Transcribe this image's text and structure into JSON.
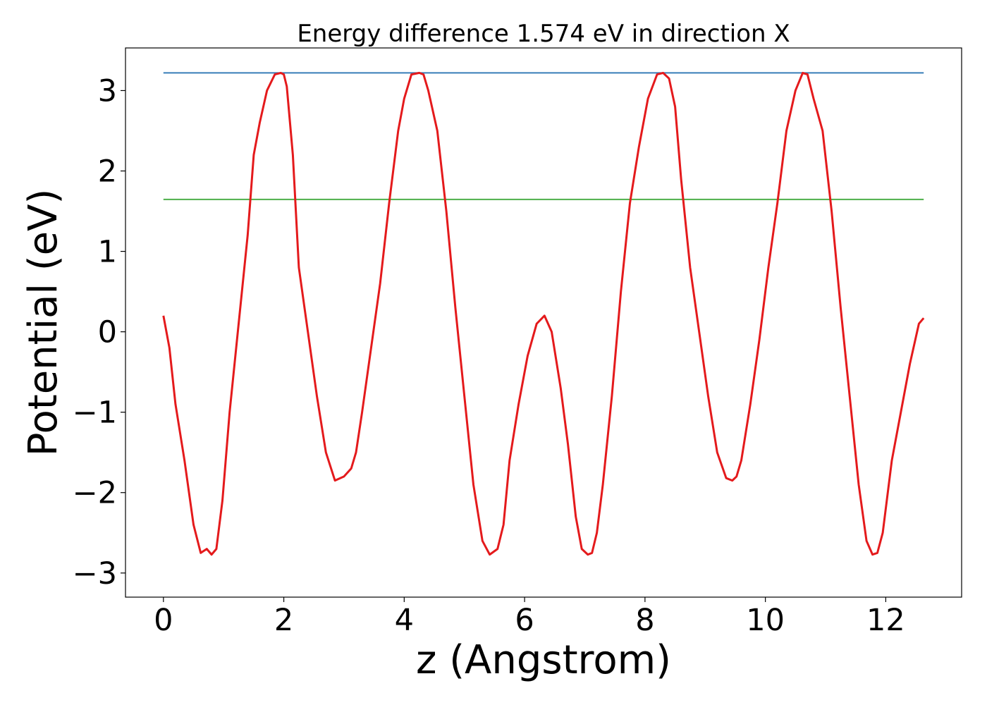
{
  "chart_data": {
    "type": "line",
    "title": "Energy difference 1.574 eV in direction X",
    "xlabel": "z (Angstrom)",
    "ylabel": "Potential (eV)",
    "xlim": [
      -0.63,
      13.26
    ],
    "ylim": [
      -3.3,
      3.53
    ],
    "xticks": [
      0,
      2,
      4,
      6,
      8,
      10,
      12
    ],
    "xtick_labels": [
      "0",
      "2",
      "4",
      "6",
      "8",
      "10",
      "12"
    ],
    "yticks": [
      -3,
      -2,
      -1,
      0,
      1,
      2,
      3
    ],
    "ytick_labels": [
      "−3",
      "−2",
      "−1",
      "0",
      "1",
      "2",
      "3"
    ],
    "grid": false,
    "series": [
      {
        "color": "#e41a1c",
        "x": [
          0.0,
          0.1,
          0.2,
          0.35,
          0.5,
          0.62,
          0.72,
          0.8,
          0.88,
          0.98,
          1.1,
          1.25,
          1.4,
          1.5,
          1.6,
          1.72,
          1.85,
          1.95,
          2.0,
          2.05,
          2.15,
          2.25,
          2.4,
          2.55,
          2.7,
          2.85,
          3.0,
          3.12,
          3.2,
          3.3,
          3.45,
          3.6,
          3.75,
          3.9,
          4.0,
          4.12,
          4.25,
          4.32,
          4.4,
          4.55,
          4.7,
          4.85,
          5.0,
          5.15,
          5.3,
          5.42,
          5.55,
          5.65,
          5.75,
          5.9,
          6.05,
          6.2,
          6.33,
          6.45,
          6.6,
          6.72,
          6.85,
          6.95,
          7.05,
          7.12,
          7.2,
          7.3,
          7.45,
          7.6,
          7.75,
          7.9,
          8.05,
          8.2,
          8.3,
          8.4,
          8.5,
          8.6,
          8.75,
          8.9,
          9.05,
          9.2,
          9.35,
          9.45,
          9.52,
          9.6,
          9.75,
          9.9,
          10.05,
          10.2,
          10.35,
          10.5,
          10.62,
          10.7,
          10.8,
          10.95,
          11.1,
          11.25,
          11.4,
          11.55,
          11.68,
          11.78,
          11.86,
          11.95,
          12.1,
          12.25,
          12.4,
          12.55,
          12.63
        ],
        "values": [
          0.2,
          -0.2,
          -0.9,
          -1.6,
          -2.4,
          -2.75,
          -2.7,
          -2.77,
          -2.7,
          -2.1,
          -1.0,
          0.1,
          1.2,
          2.2,
          2.6,
          3.0,
          3.2,
          3.22,
          3.2,
          3.05,
          2.2,
          0.8,
          0.0,
          -0.8,
          -1.5,
          -1.85,
          -1.8,
          -1.7,
          -1.5,
          -1.0,
          -0.2,
          0.6,
          1.6,
          2.5,
          2.9,
          3.2,
          3.22,
          3.2,
          3.0,
          2.5,
          1.5,
          0.3,
          -0.8,
          -1.9,
          -2.6,
          -2.77,
          -2.7,
          -2.4,
          -1.6,
          -0.9,
          -0.3,
          0.1,
          0.2,
          0.0,
          -0.7,
          -1.4,
          -2.3,
          -2.7,
          -2.77,
          -2.75,
          -2.5,
          -1.9,
          -0.8,
          0.5,
          1.6,
          2.3,
          2.9,
          3.2,
          3.22,
          3.15,
          2.8,
          1.9,
          0.8,
          0.0,
          -0.8,
          -1.5,
          -1.82,
          -1.85,
          -1.8,
          -1.6,
          -0.9,
          -0.1,
          0.8,
          1.6,
          2.5,
          3.0,
          3.22,
          3.2,
          2.9,
          2.5,
          1.5,
          0.3,
          -0.8,
          -1.9,
          -2.6,
          -2.77,
          -2.75,
          -2.5,
          -1.6,
          -1.0,
          -0.4,
          0.1,
          0.17
        ]
      },
      {
        "color": "#377eb8",
        "x": [
          0.0,
          12.63
        ],
        "values": [
          3.22,
          3.22
        ]
      },
      {
        "color": "#4daf4a",
        "x": [
          0.0,
          12.63
        ],
        "values": [
          1.646,
          1.646
        ]
      }
    ]
  }
}
